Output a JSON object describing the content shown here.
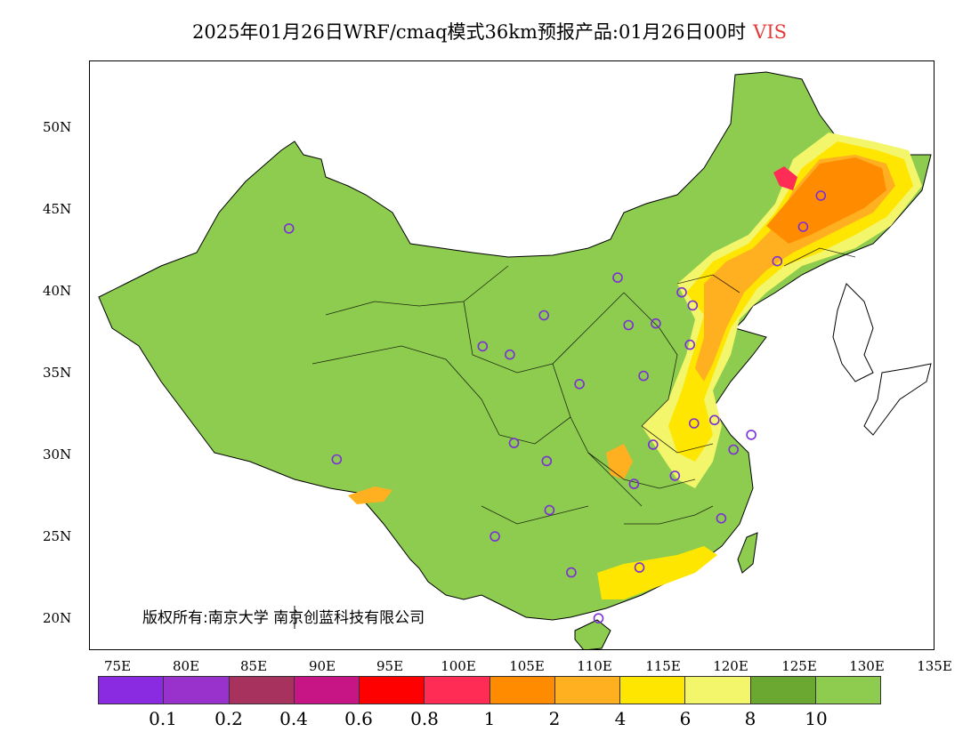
{
  "title": {
    "text": "2025年01月26日WRF/cmaq模式36km预报产品:01月26日00时",
    "variable": "VIS",
    "variable_color": "#e23b3b"
  },
  "map": {
    "lat_ticks": [
      "50N",
      "45N",
      "40N",
      "35N",
      "30N",
      "25N",
      "20N"
    ],
    "lon_ticks": [
      "75E",
      "80E",
      "85E",
      "90E",
      "95E",
      "100E",
      "105E",
      "110E",
      "115E",
      "120E",
      "125E",
      "130E",
      "135E"
    ],
    "lon_range": [
      73,
      135
    ],
    "lat_range": [
      18,
      54
    ],
    "copyright": "版权所有:南京大学  南京创蓝科技有限公司",
    "stations": [
      {
        "lon": 87.6,
        "lat": 43.8
      },
      {
        "lon": 91.1,
        "lat": 29.7
      },
      {
        "lon": 101.8,
        "lat": 36.6
      },
      {
        "lon": 103.8,
        "lat": 36.1
      },
      {
        "lon": 106.3,
        "lat": 38.5
      },
      {
        "lon": 111.7,
        "lat": 40.8
      },
      {
        "lon": 112.5,
        "lat": 37.9
      },
      {
        "lon": 114.5,
        "lat": 38.0
      },
      {
        "lon": 116.4,
        "lat": 39.9
      },
      {
        "lon": 117.2,
        "lat": 39.1
      },
      {
        "lon": 117.0,
        "lat": 36.7
      },
      {
        "lon": 113.6,
        "lat": 34.8
      },
      {
        "lon": 108.9,
        "lat": 34.3
      },
      {
        "lon": 104.1,
        "lat": 30.7
      },
      {
        "lon": 106.5,
        "lat": 29.6
      },
      {
        "lon": 106.7,
        "lat": 26.6
      },
      {
        "lon": 102.7,
        "lat": 25.0
      },
      {
        "lon": 108.3,
        "lat": 22.8
      },
      {
        "lon": 110.3,
        "lat": 20.0
      },
      {
        "lon": 113.3,
        "lat": 23.1
      },
      {
        "lon": 112.9,
        "lat": 28.2
      },
      {
        "lon": 114.3,
        "lat": 30.6
      },
      {
        "lon": 115.9,
        "lat": 28.7
      },
      {
        "lon": 117.3,
        "lat": 31.9
      },
      {
        "lon": 118.8,
        "lat": 32.1
      },
      {
        "lon": 120.2,
        "lat": 30.3
      },
      {
        "lon": 121.5,
        "lat": 31.2
      },
      {
        "lon": 119.3,
        "lat": 26.1
      },
      {
        "lon": 123.4,
        "lat": 41.8
      },
      {
        "lon": 125.3,
        "lat": 43.9
      },
      {
        "lon": 126.6,
        "lat": 45.8
      }
    ]
  },
  "legend": {
    "colors": [
      "#8a2be2",
      "#9932cc",
      "#a8325e",
      "#c71585",
      "#ff0000",
      "#ff2d55",
      "#ff8c00",
      "#ffb020",
      "#ffe600",
      "#f3f56a",
      "#6aa832",
      "#8dcc4e"
    ],
    "labels": [
      "0.1",
      "0.2",
      "0.4",
      "0.6",
      "0.8",
      "1",
      "2",
      "4",
      "6",
      "8",
      "10"
    ]
  }
}
